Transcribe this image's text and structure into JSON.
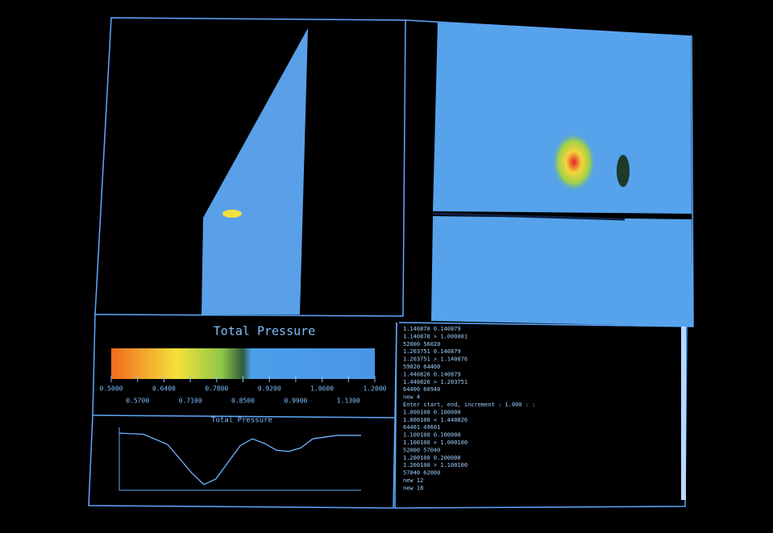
{
  "colorbar": {
    "title": "Total Pressure",
    "lim": [
      0.5,
      1.2
    ],
    "ticks": [
      {
        "value": 0.5,
        "label": "0.5000"
      },
      {
        "value": 0.57,
        "label": "0.5700"
      },
      {
        "value": 0.64,
        "label": "0.6400"
      },
      {
        "value": 0.71,
        "label": "0.7100"
      },
      {
        "value": 0.78,
        "label": "0.7800"
      },
      {
        "value": 0.85,
        "label": "0.8500"
      },
      {
        "value": 0.92,
        "label": "0.9200"
      },
      {
        "value": 0.99,
        "label": "0.9900"
      },
      {
        "value": 1.06,
        "label": "1.0600"
      },
      {
        "value": 1.13,
        "label": "1.1300"
      },
      {
        "value": 1.2,
        "label": "1.2000"
      }
    ]
  },
  "chart_data": {
    "type": "line",
    "title": "Total Pressure",
    "color": "#6fb2ff",
    "x": [
      0,
      0.1,
      0.2,
      0.3,
      0.35,
      0.4,
      0.5,
      0.55,
      0.6,
      0.65,
      0.7,
      0.75,
      0.8,
      0.9,
      1.0
    ],
    "values": [
      0.95,
      0.94,
      0.85,
      0.6,
      0.5,
      0.55,
      0.84,
      0.9,
      0.86,
      0.8,
      0.79,
      0.82,
      0.9,
      0.93,
      0.93
    ],
    "xlim": [
      0,
      1
    ],
    "ylim": [
      0.45,
      1.0
    ]
  },
  "console": {
    "lines": [
      "1.140870      0.140879",
      "1.140870   >   1.000001",
      "52000        56020",
      "1.203751      0.140879",
      "1.203751   >   1.140876",
      "59020        64400",
      "1.440826      0.140879",
      "1.440826   >   1.203751",
      "64400        60940",
      "new 4",
      "Enter start, end, increment : 1.000 : :",
      "1.000100      0.100000",
      "1.000100   <   1.440826",
      "64401        49601",
      "1.100100      0.100000",
      "1.100100   >   1.000100",
      "52000        57040",
      "1.200100      0.200000",
      "1.200100   >   1.100100",
      "57040        62000",
      "new 12",
      "new 18"
    ]
  }
}
